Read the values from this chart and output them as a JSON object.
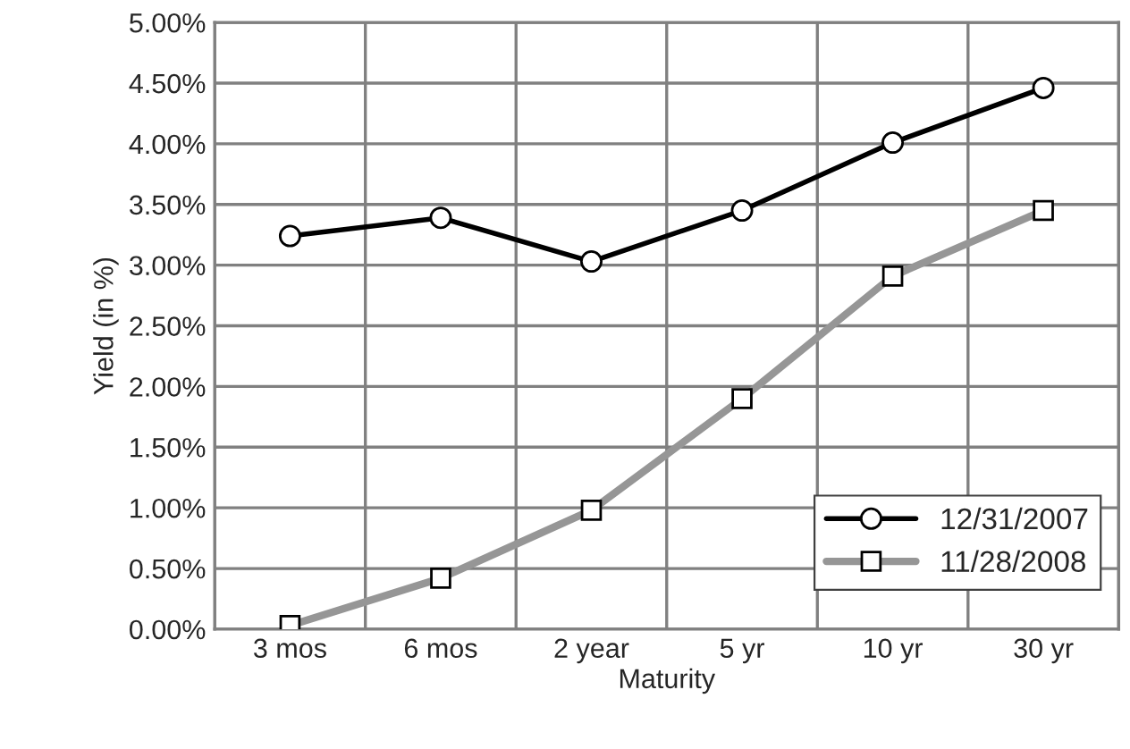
{
  "chart_data": {
    "type": "line",
    "xlabel": "Maturity",
    "ylabel": "Yield (in %)",
    "categories": [
      "3 mos",
      "6 mos",
      "2 year",
      "5 yr",
      "10 yr",
      "30 yr"
    ],
    "series": [
      {
        "name": "12/31/2007",
        "color": "#000000",
        "marker": "circle",
        "values": [
          3.24,
          3.39,
          3.03,
          3.45,
          4.01,
          4.46
        ]
      },
      {
        "name": "11/28/2008",
        "color": "#969696",
        "marker": "square",
        "values": [
          0.03,
          0.42,
          0.98,
          1.9,
          2.91,
          3.45
        ]
      }
    ],
    "ylim": [
      0,
      5
    ],
    "yticks": [
      {
        "value": 0,
        "label": "0.00%"
      },
      {
        "value": 0.5,
        "label": "0.50%"
      },
      {
        "value": 1,
        "label": "1.00%"
      },
      {
        "value": 1.5,
        "label": "1.50%"
      },
      {
        "value": 2,
        "label": "2.00%"
      },
      {
        "value": 2.5,
        "label": "2.50%"
      },
      {
        "value": 3,
        "label": "3.00%"
      },
      {
        "value": 3.5,
        "label": "3.50%"
      },
      {
        "value": 4,
        "label": "4.00%"
      },
      {
        "value": 4.5,
        "label": "4.50%"
      },
      {
        "value": 5,
        "label": "5.00%"
      }
    ],
    "grid": true,
    "legend": "bottom right",
    "line_style": "solid"
  }
}
